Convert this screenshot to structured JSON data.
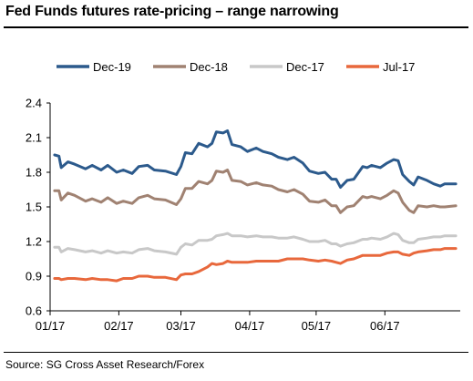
{
  "title": "Fed Funds futures rate-pricing – range narrowing",
  "source": "Source: SG Cross Asset Research/Forex",
  "chart_data": {
    "type": "line",
    "title": "Fed Funds futures rate-pricing – range narrowing",
    "xlabel": "",
    "ylabel": "",
    "ylim": [
      0.6,
      2.4
    ],
    "yticks": [
      "0.6",
      "0.9",
      "1.2",
      "1.5",
      "1.8",
      "2.1",
      "2.4"
    ],
    "xticks": [
      "01/17",
      "02/17",
      "03/17",
      "04/17",
      "05/17",
      "06/17"
    ],
    "legend_position": "top",
    "grid": false,
    "series": [
      {
        "name": "Dec-19",
        "color": "#2c5a8c",
        "points": [
          [
            "2017-01-03",
            1.95
          ],
          [
            "2017-01-05",
            1.94
          ],
          [
            "2017-01-06",
            1.84
          ],
          [
            "2017-01-09",
            1.89
          ],
          [
            "2017-01-12",
            1.87
          ],
          [
            "2017-01-17",
            1.83
          ],
          [
            "2017-01-20",
            1.86
          ],
          [
            "2017-01-24",
            1.82
          ],
          [
            "2017-01-27",
            1.86
          ],
          [
            "2017-01-31",
            1.8
          ],
          [
            "2017-02-03",
            1.82
          ],
          [
            "2017-02-07",
            1.79
          ],
          [
            "2017-02-10",
            1.85
          ],
          [
            "2017-02-14",
            1.86
          ],
          [
            "2017-02-17",
            1.82
          ],
          [
            "2017-02-22",
            1.81
          ],
          [
            "2017-02-27",
            1.78
          ],
          [
            "2017-03-01",
            1.85
          ],
          [
            "2017-03-03",
            1.97
          ],
          [
            "2017-03-06",
            1.96
          ],
          [
            "2017-03-09",
            2.05
          ],
          [
            "2017-03-13",
            2.02
          ],
          [
            "2017-03-15",
            2.05
          ],
          [
            "2017-03-17",
            2.15
          ],
          [
            "2017-03-20",
            2.14
          ],
          [
            "2017-03-22",
            2.16
          ],
          [
            "2017-03-24",
            2.04
          ],
          [
            "2017-03-28",
            2.02
          ],
          [
            "2017-03-31",
            1.98
          ],
          [
            "2017-04-04",
            2.01
          ],
          [
            "2017-04-07",
            1.98
          ],
          [
            "2017-04-11",
            1.96
          ],
          [
            "2017-04-14",
            1.93
          ],
          [
            "2017-04-18",
            1.91
          ],
          [
            "2017-04-21",
            1.93
          ],
          [
            "2017-04-25",
            1.88
          ],
          [
            "2017-04-28",
            1.81
          ],
          [
            "2017-05-02",
            1.79
          ],
          [
            "2017-05-05",
            1.8
          ],
          [
            "2017-05-08",
            1.74
          ],
          [
            "2017-05-10",
            1.74
          ],
          [
            "2017-05-12",
            1.67
          ],
          [
            "2017-05-15",
            1.73
          ],
          [
            "2017-05-18",
            1.74
          ],
          [
            "2017-05-22",
            1.85
          ],
          [
            "2017-05-24",
            1.84
          ],
          [
            "2017-05-26",
            1.86
          ],
          [
            "2017-05-30",
            1.84
          ],
          [
            "2017-06-02",
            1.88
          ],
          [
            "2017-06-05",
            1.91
          ],
          [
            "2017-06-07",
            1.9
          ],
          [
            "2017-06-09",
            1.78
          ],
          [
            "2017-06-12",
            1.72
          ],
          [
            "2017-06-14",
            1.69
          ],
          [
            "2017-06-16",
            1.76
          ],
          [
            "2017-06-20",
            1.73
          ],
          [
            "2017-06-23",
            1.7
          ],
          [
            "2017-06-26",
            1.68
          ],
          [
            "2017-06-28",
            1.7
          ],
          [
            "2017-07-03",
            1.7
          ]
        ]
      },
      {
        "name": "Dec-18",
        "color": "#a08272",
        "points": [
          [
            "2017-01-03",
            1.64
          ],
          [
            "2017-01-05",
            1.64
          ],
          [
            "2017-01-06",
            1.56
          ],
          [
            "2017-01-09",
            1.62
          ],
          [
            "2017-01-12",
            1.6
          ],
          [
            "2017-01-17",
            1.55
          ],
          [
            "2017-01-20",
            1.57
          ],
          [
            "2017-01-24",
            1.54
          ],
          [
            "2017-01-27",
            1.58
          ],
          [
            "2017-01-31",
            1.53
          ],
          [
            "2017-02-03",
            1.55
          ],
          [
            "2017-02-07",
            1.53
          ],
          [
            "2017-02-10",
            1.58
          ],
          [
            "2017-02-14",
            1.6
          ],
          [
            "2017-02-17",
            1.57
          ],
          [
            "2017-02-22",
            1.56
          ],
          [
            "2017-02-27",
            1.52
          ],
          [
            "2017-03-01",
            1.57
          ],
          [
            "2017-03-03",
            1.66
          ],
          [
            "2017-03-06",
            1.66
          ],
          [
            "2017-03-09",
            1.72
          ],
          [
            "2017-03-13",
            1.7
          ],
          [
            "2017-03-15",
            1.73
          ],
          [
            "2017-03-17",
            1.81
          ],
          [
            "2017-03-20",
            1.8
          ],
          [
            "2017-03-22",
            1.82
          ],
          [
            "2017-03-24",
            1.73
          ],
          [
            "2017-03-28",
            1.72
          ],
          [
            "2017-03-31",
            1.69
          ],
          [
            "2017-04-04",
            1.71
          ],
          [
            "2017-04-07",
            1.69
          ],
          [
            "2017-04-11",
            1.68
          ],
          [
            "2017-04-14",
            1.65
          ],
          [
            "2017-04-18",
            1.63
          ],
          [
            "2017-04-21",
            1.65
          ],
          [
            "2017-04-25",
            1.61
          ],
          [
            "2017-04-28",
            1.55
          ],
          [
            "2017-05-02",
            1.54
          ],
          [
            "2017-05-05",
            1.56
          ],
          [
            "2017-05-08",
            1.51
          ],
          [
            "2017-05-10",
            1.51
          ],
          [
            "2017-05-12",
            1.45
          ],
          [
            "2017-05-15",
            1.5
          ],
          [
            "2017-05-18",
            1.51
          ],
          [
            "2017-05-22",
            1.59
          ],
          [
            "2017-05-24",
            1.58
          ],
          [
            "2017-05-26",
            1.59
          ],
          [
            "2017-05-30",
            1.57
          ],
          [
            "2017-06-02",
            1.6
          ],
          [
            "2017-06-05",
            1.64
          ],
          [
            "2017-06-07",
            1.62
          ],
          [
            "2017-06-09",
            1.54
          ],
          [
            "2017-06-12",
            1.47
          ],
          [
            "2017-06-14",
            1.45
          ],
          [
            "2017-06-16",
            1.51
          ],
          [
            "2017-06-20",
            1.5
          ],
          [
            "2017-06-23",
            1.51
          ],
          [
            "2017-06-26",
            1.5
          ],
          [
            "2017-06-28",
            1.5
          ],
          [
            "2017-07-03",
            1.51
          ]
        ]
      },
      {
        "name": "Dec-17",
        "color": "#c8c8c8",
        "points": [
          [
            "2017-01-03",
            1.15
          ],
          [
            "2017-01-05",
            1.15
          ],
          [
            "2017-01-06",
            1.11
          ],
          [
            "2017-01-09",
            1.14
          ],
          [
            "2017-01-12",
            1.13
          ],
          [
            "2017-01-17",
            1.11
          ],
          [
            "2017-01-20",
            1.12
          ],
          [
            "2017-01-24",
            1.1
          ],
          [
            "2017-01-27",
            1.12
          ],
          [
            "2017-01-31",
            1.1
          ],
          [
            "2017-02-03",
            1.11
          ],
          [
            "2017-02-07",
            1.1
          ],
          [
            "2017-02-10",
            1.13
          ],
          [
            "2017-02-14",
            1.14
          ],
          [
            "2017-02-17",
            1.12
          ],
          [
            "2017-02-22",
            1.11
          ],
          [
            "2017-02-27",
            1.09
          ],
          [
            "2017-03-01",
            1.15
          ],
          [
            "2017-03-03",
            1.18
          ],
          [
            "2017-03-06",
            1.17
          ],
          [
            "2017-03-09",
            1.21
          ],
          [
            "2017-03-13",
            1.21
          ],
          [
            "2017-03-15",
            1.22
          ],
          [
            "2017-03-17",
            1.25
          ],
          [
            "2017-03-20",
            1.26
          ],
          [
            "2017-03-22",
            1.27
          ],
          [
            "2017-03-24",
            1.25
          ],
          [
            "2017-03-28",
            1.25
          ],
          [
            "2017-03-31",
            1.24
          ],
          [
            "2017-04-04",
            1.25
          ],
          [
            "2017-04-07",
            1.24
          ],
          [
            "2017-04-11",
            1.24
          ],
          [
            "2017-04-14",
            1.23
          ],
          [
            "2017-04-18",
            1.23
          ],
          [
            "2017-04-21",
            1.24
          ],
          [
            "2017-04-25",
            1.22
          ],
          [
            "2017-04-28",
            1.2
          ],
          [
            "2017-05-02",
            1.2
          ],
          [
            "2017-05-05",
            1.21
          ],
          [
            "2017-05-08",
            1.18
          ],
          [
            "2017-05-10",
            1.18
          ],
          [
            "2017-05-12",
            1.16
          ],
          [
            "2017-05-15",
            1.18
          ],
          [
            "2017-05-18",
            1.19
          ],
          [
            "2017-05-22",
            1.22
          ],
          [
            "2017-05-24",
            1.22
          ],
          [
            "2017-05-26",
            1.23
          ],
          [
            "2017-05-30",
            1.22
          ],
          [
            "2017-06-02",
            1.24
          ],
          [
            "2017-06-05",
            1.27
          ],
          [
            "2017-06-07",
            1.26
          ],
          [
            "2017-06-09",
            1.21
          ],
          [
            "2017-06-12",
            1.19
          ],
          [
            "2017-06-14",
            1.19
          ],
          [
            "2017-06-16",
            1.22
          ],
          [
            "2017-06-20",
            1.23
          ],
          [
            "2017-06-23",
            1.24
          ],
          [
            "2017-06-26",
            1.24
          ],
          [
            "2017-06-28",
            1.25
          ],
          [
            "2017-07-03",
            1.25
          ]
        ]
      },
      {
        "name": "Jul-17",
        "color": "#e8683c",
        "points": [
          [
            "2017-01-03",
            0.88
          ],
          [
            "2017-01-05",
            0.88
          ],
          [
            "2017-01-06",
            0.87
          ],
          [
            "2017-01-09",
            0.88
          ],
          [
            "2017-01-12",
            0.88
          ],
          [
            "2017-01-17",
            0.87
          ],
          [
            "2017-01-20",
            0.88
          ],
          [
            "2017-01-24",
            0.87
          ],
          [
            "2017-01-27",
            0.87
          ],
          [
            "2017-01-31",
            0.86
          ],
          [
            "2017-02-03",
            0.88
          ],
          [
            "2017-02-07",
            0.88
          ],
          [
            "2017-02-10",
            0.9
          ],
          [
            "2017-02-14",
            0.9
          ],
          [
            "2017-02-17",
            0.89
          ],
          [
            "2017-02-22",
            0.89
          ],
          [
            "2017-02-27",
            0.87
          ],
          [
            "2017-03-01",
            0.91
          ],
          [
            "2017-03-03",
            0.92
          ],
          [
            "2017-03-06",
            0.92
          ],
          [
            "2017-03-09",
            0.94
          ],
          [
            "2017-03-13",
            0.98
          ],
          [
            "2017-03-15",
            1.01
          ],
          [
            "2017-03-17",
            1.0
          ],
          [
            "2017-03-20",
            1.01
          ],
          [
            "2017-03-22",
            1.03
          ],
          [
            "2017-03-24",
            1.02
          ],
          [
            "2017-03-28",
            1.02
          ],
          [
            "2017-03-31",
            1.02
          ],
          [
            "2017-04-04",
            1.03
          ],
          [
            "2017-04-07",
            1.03
          ],
          [
            "2017-04-11",
            1.03
          ],
          [
            "2017-04-14",
            1.03
          ],
          [
            "2017-04-18",
            1.05
          ],
          [
            "2017-04-21",
            1.05
          ],
          [
            "2017-04-25",
            1.05
          ],
          [
            "2017-04-28",
            1.04
          ],
          [
            "2017-05-02",
            1.03
          ],
          [
            "2017-05-05",
            1.04
          ],
          [
            "2017-05-08",
            1.03
          ],
          [
            "2017-05-10",
            1.02
          ],
          [
            "2017-05-12",
            1.01
          ],
          [
            "2017-05-15",
            1.04
          ],
          [
            "2017-05-18",
            1.05
          ],
          [
            "2017-05-22",
            1.08
          ],
          [
            "2017-05-24",
            1.08
          ],
          [
            "2017-05-26",
            1.08
          ],
          [
            "2017-05-30",
            1.08
          ],
          [
            "2017-06-02",
            1.1
          ],
          [
            "2017-06-05",
            1.11
          ],
          [
            "2017-06-07",
            1.11
          ],
          [
            "2017-06-09",
            1.09
          ],
          [
            "2017-06-12",
            1.08
          ],
          [
            "2017-06-14",
            1.1
          ],
          [
            "2017-06-16",
            1.11
          ],
          [
            "2017-06-20",
            1.12
          ],
          [
            "2017-06-23",
            1.13
          ],
          [
            "2017-06-26",
            1.13
          ],
          [
            "2017-06-28",
            1.14
          ],
          [
            "2017-07-03",
            1.14
          ]
        ]
      }
    ]
  }
}
